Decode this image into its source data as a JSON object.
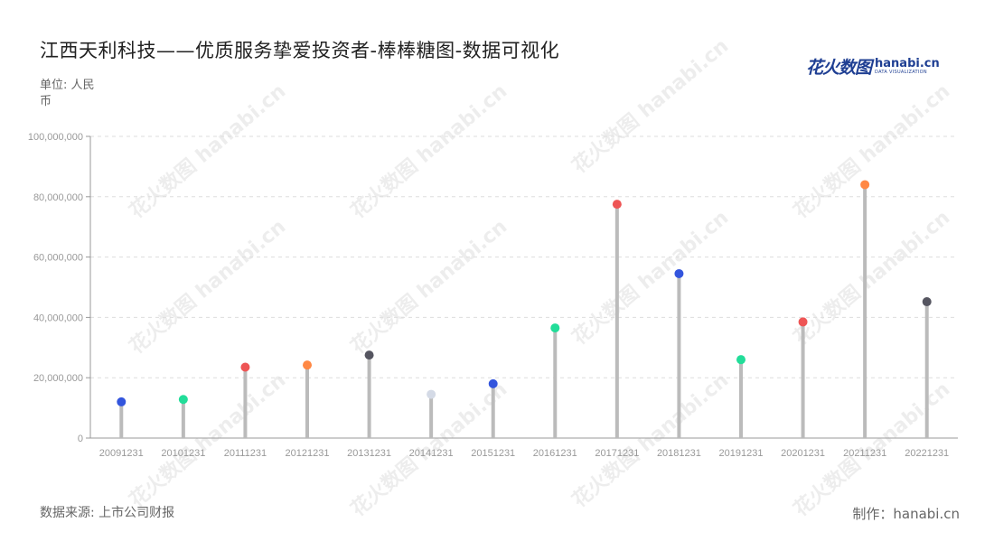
{
  "title": "江西天利科技——优质服务挚爱投资者-棒棒糖图-数据可视化",
  "unit_label": "单位: 人民币",
  "source_label": "数据来源: 上市公司财报",
  "credit_label": "制作：hanabi.cn",
  "logo": {
    "cn": "花火数图",
    "en": "hanabi.cn",
    "sub": "DATA VISUALIZATION"
  },
  "watermark": "花火数图 hanabi.cn",
  "chart_data": {
    "type": "lollipop",
    "title": "江西天利科技——优质服务挚爱投资者-棒棒糖图-数据可视化",
    "ylabel": "单位: 人民币",
    "xlabel": "",
    "ylim": [
      0,
      100000000
    ],
    "yticks": [
      0,
      20000000,
      40000000,
      60000000,
      80000000,
      100000000
    ],
    "ytick_labels": [
      "0",
      "20,000,000",
      "40,000,000",
      "60,000,000",
      "80,000,000",
      "100,000,000"
    ],
    "grid": true,
    "categories": [
      "20091231",
      "20101231",
      "20111231",
      "20121231",
      "20131231",
      "20141231",
      "20151231",
      "20161231",
      "20171231",
      "20181231",
      "20191231",
      "20201231",
      "20211231",
      "20221231"
    ],
    "values": [
      12000000,
      12800000,
      23500000,
      24200000,
      27500000,
      14500000,
      18000000,
      36500000,
      77500000,
      54500000,
      26000000,
      38500000,
      84000000,
      45200000
    ],
    "dot_colors": [
      "#3355dd",
      "#22dd99",
      "#ee5555",
      "#ff8844",
      "#555560",
      "#d4dae6",
      "#3355dd",
      "#22dd99",
      "#ee5555",
      "#3355dd",
      "#22dd99",
      "#ee5555",
      "#ff8844",
      "#555560"
    ],
    "stem_color": "#bbbbbb",
    "grid_color": "#dddddd"
  }
}
